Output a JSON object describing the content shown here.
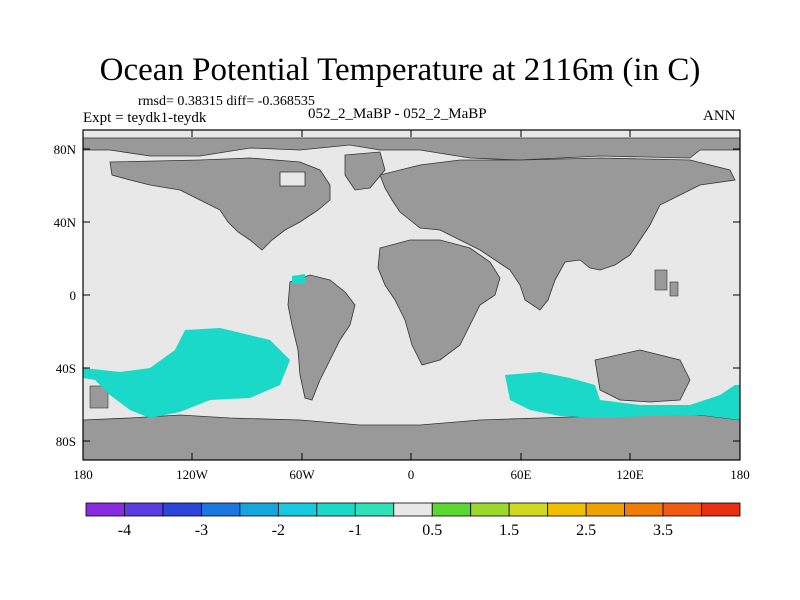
{
  "title": "Ocean Potential Temperature at 2116m (in C)",
  "stats": "rmsd= 0.38315 diff= -0.368535",
  "expt": "Expt = teydk1-teydk",
  "center_label": "052_2_MaBP - 052_2_MaBP",
  "season": "ANN",
  "lat_ticks": [
    "80N",
    "40N",
    "0",
    "40S",
    "80S"
  ],
  "lon_ticks": [
    "180",
    "120W",
    "60W",
    "0",
    "60E",
    "120E",
    "180"
  ],
  "colorbar": {
    "colors": [
      "#8a2be2",
      "#5a3de0",
      "#2a45d8",
      "#1a78e0",
      "#15a6e0",
      "#16c9e0",
      "#1ad9c8",
      "#30e0b8",
      "#e8e8e8",
      "#5ad830",
      "#9ad82a",
      "#d0d820",
      "#f0c000",
      "#f0a000",
      "#f07c00",
      "#f05a10",
      "#e83010"
    ],
    "labels": [
      "-4",
      "-3",
      "-2",
      "-1",
      "0.5",
      "1.5",
      "2.5",
      "3.5"
    ]
  },
  "colors": {
    "ocean": "#e8e8e8",
    "land": "#999999",
    "anomaly": "#1ad9c8"
  }
}
